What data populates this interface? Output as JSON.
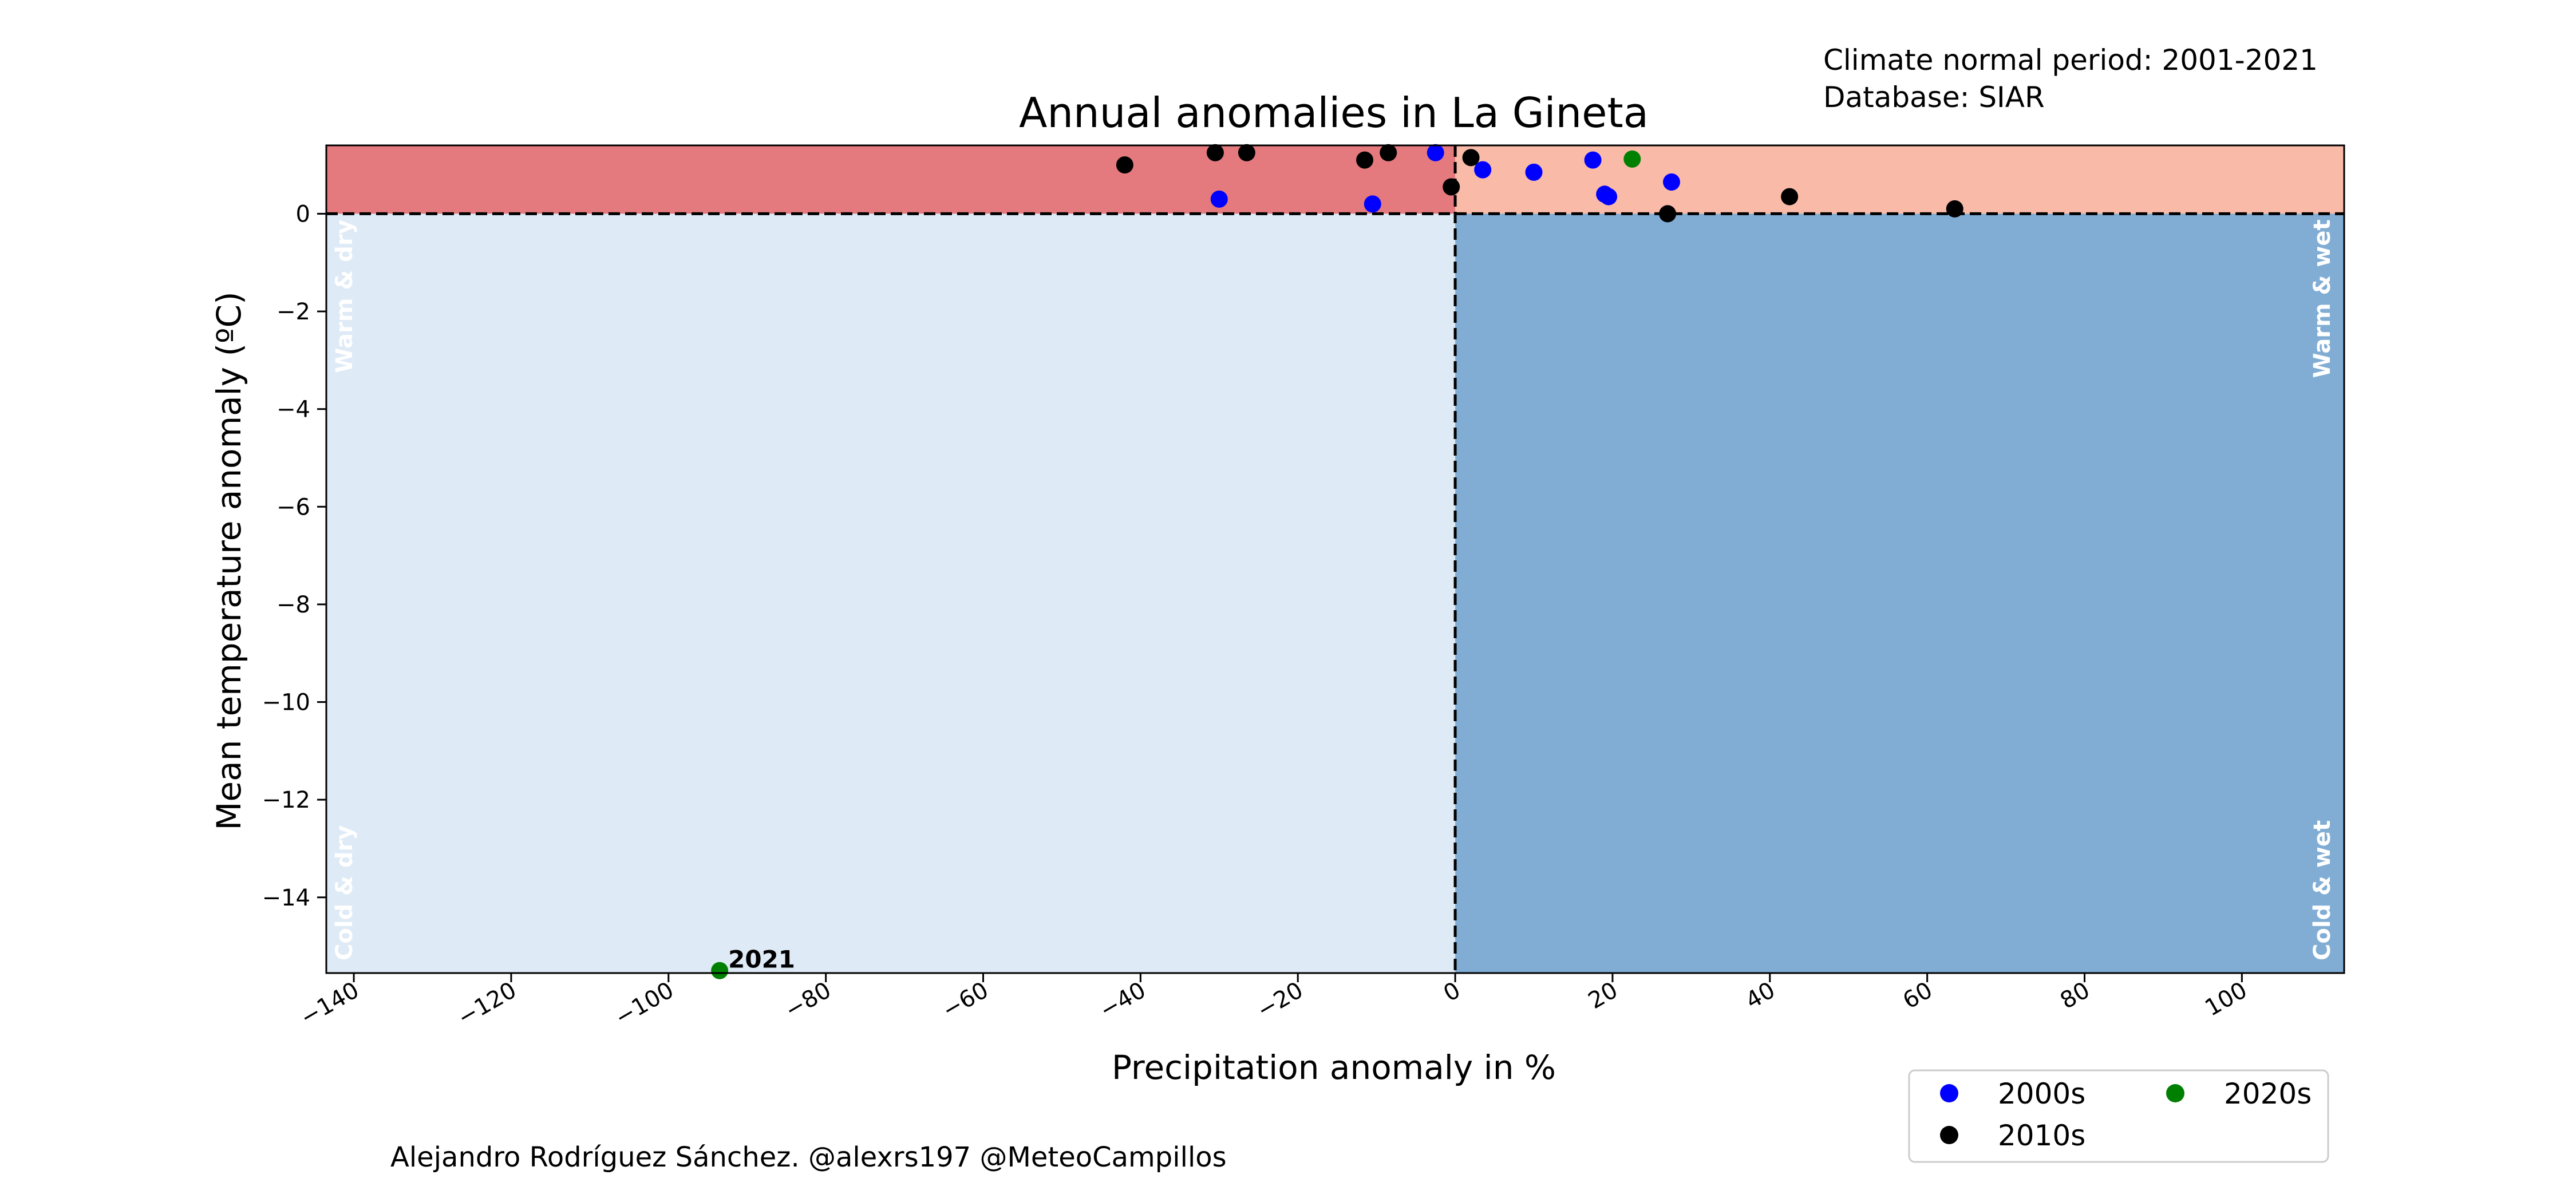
{
  "chart_data": {
    "type": "scatter",
    "title": "Annual anomalies in La Gineta",
    "xlabel": "Precipitation anomaly in %",
    "ylabel": "Mean temperature anomaly (ºC)",
    "xlim": [
      -143.5,
      113
    ],
    "ylim": [
      -15.55,
      1.4
    ],
    "xticks": [
      -140,
      -120,
      -100,
      -80,
      -60,
      -40,
      -20,
      0,
      20,
      40,
      60,
      80,
      100
    ],
    "yticks": [
      -14,
      -12,
      -10,
      -8,
      -6,
      -4,
      -2,
      0
    ],
    "grid": false,
    "legend_position": "bottom-right",
    "quadrants": [
      {
        "label": "Warm & dry",
        "color": "#e47a7e"
      },
      {
        "label": "Warm & wet",
        "color": "#f9baa8"
      },
      {
        "label": "Cold & dry",
        "color": "#deeaf6"
      },
      {
        "label": "Cold & wet",
        "color": "#81add4"
      }
    ],
    "series": [
      {
        "name": "2000s",
        "color": "#0000ff",
        "points": [
          [
            -30,
            0.3
          ],
          [
            -10.5,
            0.2
          ],
          [
            -2.5,
            1.25
          ],
          [
            3.5,
            0.9
          ],
          [
            10,
            0.85
          ],
          [
            17.5,
            1.1
          ],
          [
            19,
            0.4
          ],
          [
            19.5,
            0.35
          ],
          [
            27.5,
            0.65
          ]
        ]
      },
      {
        "name": "2010s",
        "color": "#000000",
        "points": [
          [
            -42,
            1.0
          ],
          [
            -30.5,
            1.25
          ],
          [
            -26.5,
            1.25
          ],
          [
            -11.5,
            1.1
          ],
          [
            -8.5,
            1.25
          ],
          [
            -0.5,
            0.55
          ],
          [
            2,
            1.15
          ],
          [
            27,
            0.0
          ],
          [
            42.5,
            0.35
          ],
          [
            63.5,
            0.1
          ]
        ]
      },
      {
        "name": "2020s",
        "color": "#008000",
        "points": [
          [
            -93.5,
            -15.5
          ],
          [
            22.5,
            1.12
          ]
        ]
      }
    ],
    "annotations": [
      {
        "text": "2021",
        "x": -93.5,
        "y": -15.5
      }
    ],
    "info": [
      "Climate normal period: 2001-2021",
      "Database: SIAR"
    ],
    "credit": "Alejandro Rodríguez Sánchez. @alexrs197 @MeteoCampillos"
  }
}
